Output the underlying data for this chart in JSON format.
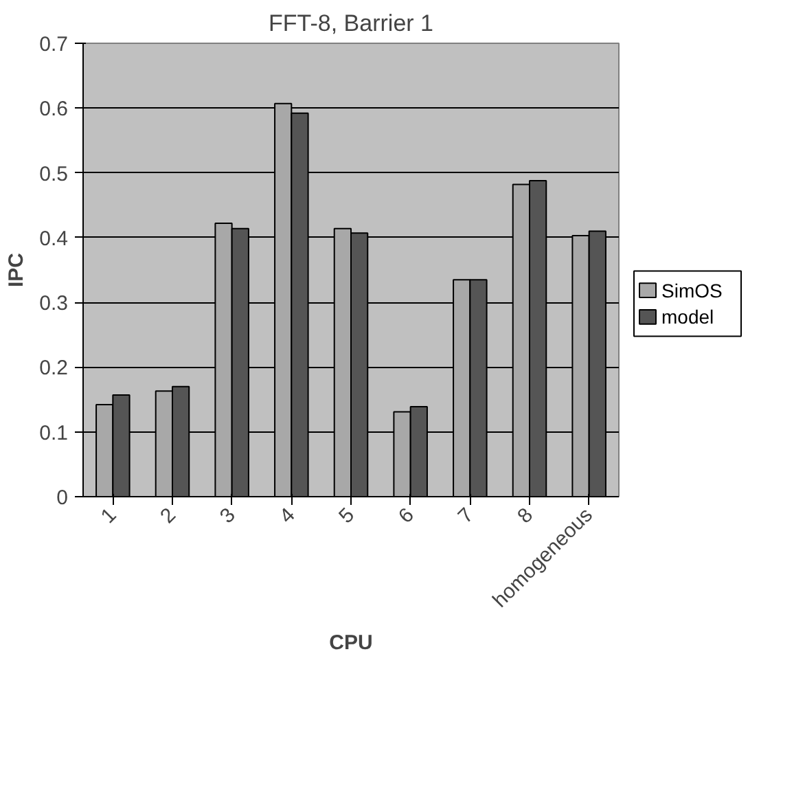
{
  "chart_data": {
    "type": "bar",
    "title": "FFT-8, Barrier 1",
    "xlabel": "CPU",
    "ylabel": "IPC",
    "categories": [
      "1",
      "2",
      "3",
      "4",
      "5",
      "6",
      "7",
      "8",
      "homogeneous"
    ],
    "series": [
      {
        "name": "SimOS",
        "color": "#a8a8a8",
        "values": [
          0.142,
          0.163,
          0.422,
          0.607,
          0.414,
          0.131,
          0.335,
          0.482,
          0.403
        ]
      },
      {
        "name": "model",
        "color": "#555555",
        "values": [
          0.157,
          0.17,
          0.414,
          0.592,
          0.407,
          0.139,
          0.335,
          0.488,
          0.41
        ]
      }
    ],
    "ylim": [
      0,
      0.7
    ],
    "yticks": [
      0,
      0.1,
      0.2,
      0.3,
      0.4,
      0.5,
      0.6,
      0.7
    ],
    "grid": "y",
    "legend": "right"
  }
}
